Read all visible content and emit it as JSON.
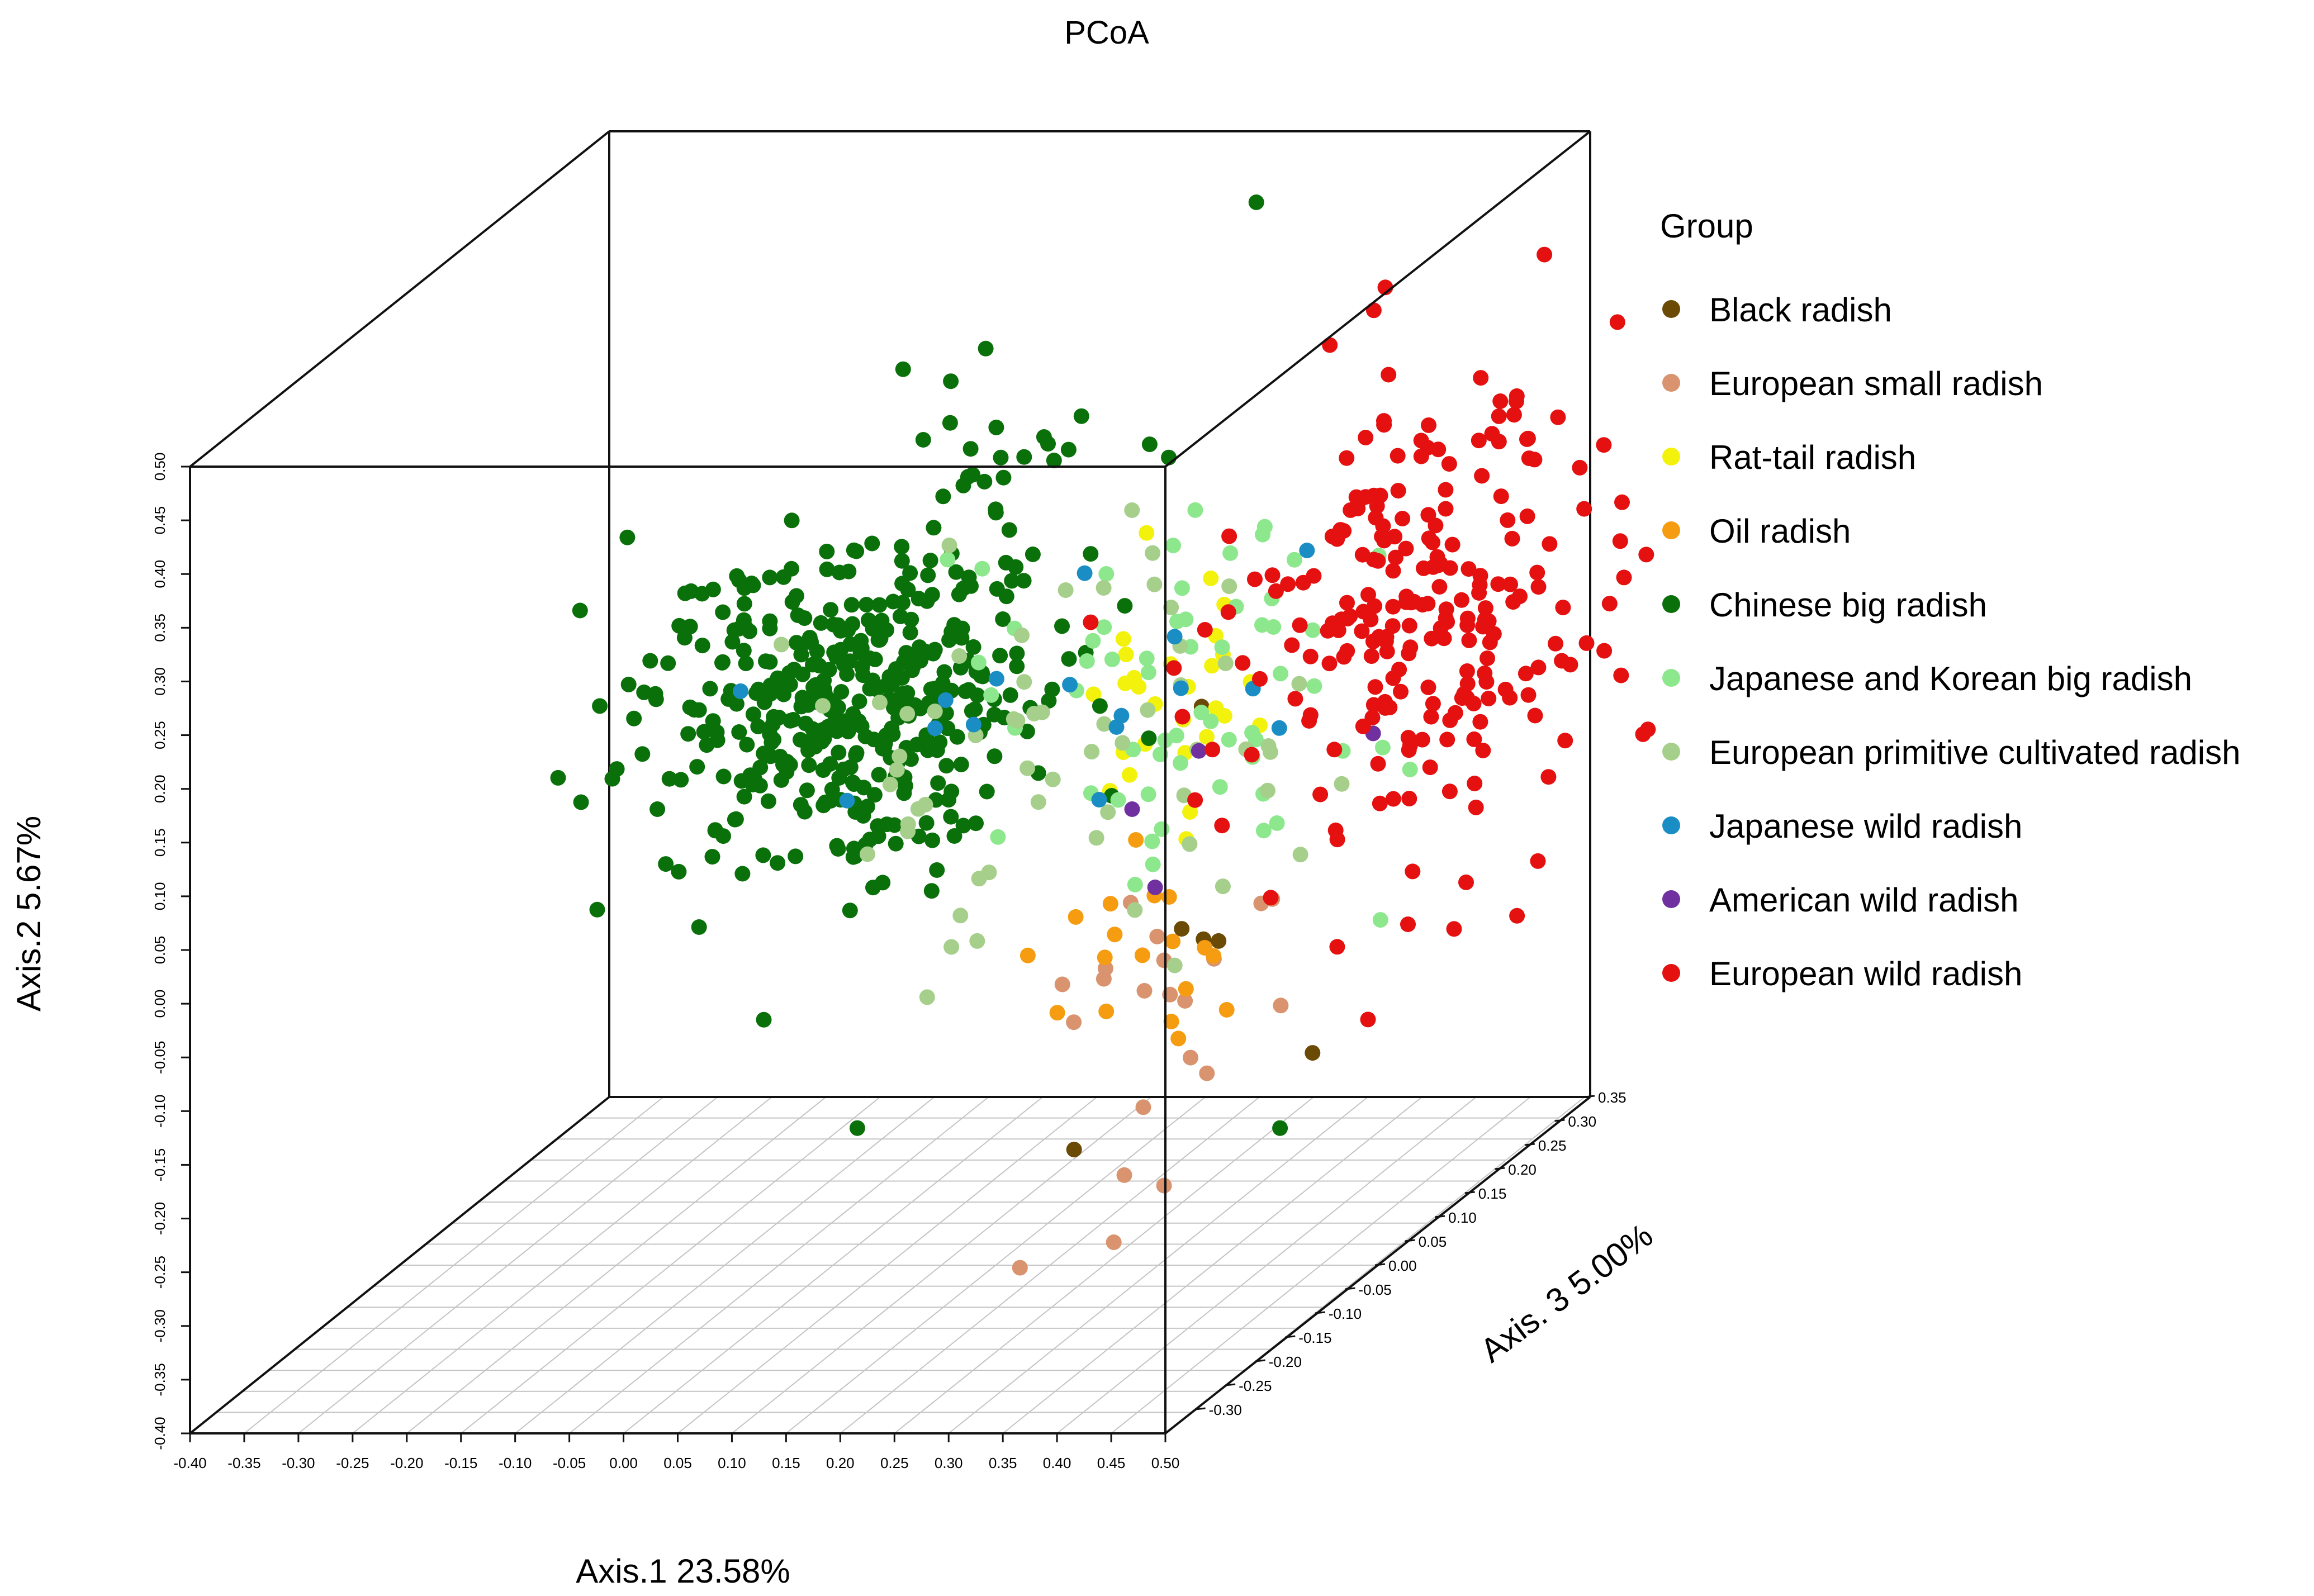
{
  "chart_data": {
    "type": "scatter",
    "projection": "3d",
    "title": "PCoA",
    "xlabel": "Axis.1  23.58%",
    "ylabel": "Axis.2  5.67%",
    "zlabel": "Axis. 3  5.00%",
    "xlim": [
      -0.4,
      0.5
    ],
    "ylim": [
      -0.4,
      0.5
    ],
    "zlim": [
      -0.35,
      0.35
    ],
    "x_ticks": [
      "-0.40",
      "-0.35",
      "-0.30",
      "-0.25",
      "-0.20",
      "-0.15",
      "-0.10",
      "-0.05",
      "0.00",
      "0.05",
      "0.10",
      "0.15",
      "0.20",
      "0.25",
      "0.30",
      "0.35",
      "0.40",
      "0.45",
      "0.50"
    ],
    "y_ticks": [
      "-0.40",
      "-0.35",
      "-0.30",
      "-0.25",
      "-0.20",
      "-0.15",
      "-0.10",
      "-0.05",
      "0.00",
      "0.05",
      "0.10",
      "0.15",
      "0.20",
      "0.25",
      "0.30",
      "0.35",
      "0.40",
      "0.45",
      "0.50"
    ],
    "z_ticks": [
      "-0.30",
      "-0.25",
      "-0.20",
      "-0.15",
      "-0.10",
      "-0.05",
      "0.00",
      "0.05",
      "0.10",
      "0.15",
      "0.20",
      "0.25",
      "0.30",
      "0.35"
    ],
    "legend": {
      "title": "Group",
      "position": "right",
      "entries": [
        {
          "name": "Black radish",
          "color": "#6b4a06"
        },
        {
          "name": "European small radish",
          "color": "#d9936f"
        },
        {
          "name": "Rat-tail radish",
          "color": "#f2f20d"
        },
        {
          "name": "Oil radish",
          "color": "#f59c10"
        },
        {
          "name": "Chinese big radish",
          "color": "#0a700a"
        },
        {
          "name": "Japanese and Korean big radish",
          "color": "#8de88d"
        },
        {
          "name": "European primitive cultivated radish",
          "color": "#a5cf8a"
        },
        {
          "name": "Japanese wild radish",
          "color": "#1a8ec4"
        },
        {
          "name": "American wild radish",
          "color": "#7030a0"
        },
        {
          "name": "European wild radish",
          "color": "#e51010"
        }
      ]
    },
    "series": [
      {
        "name": "Black radish",
        "clusters": [
          {
            "center": [
              0.36,
              -0.08,
              -0.05
            ],
            "spread": [
              0.02,
              0.02,
              0.02
            ],
            "n": 3
          },
          {
            "center": [
              0.47,
              -0.18,
              -0.05
            ],
            "spread": [
              0.01,
              0.01,
              0.01
            ],
            "n": 1
          },
          {
            "center": [
              0.25,
              -0.27,
              -0.05
            ],
            "spread": [
              0.01,
              0.01,
              0.01
            ],
            "n": 1
          },
          {
            "center": [
              0.34,
              0.12,
              0.0
            ],
            "spread": [
              0.01,
              0.01,
              0.01
            ],
            "n": 1
          }
        ]
      },
      {
        "name": "European small radish",
        "clusters": [
          {
            "center": [
              0.33,
              -0.15,
              -0.05
            ],
            "spread": [
              0.05,
              0.07,
              0.04
            ],
            "n": 18
          },
          {
            "center": [
              0.2,
              -0.38,
              -0.05
            ],
            "spread": [
              0.01,
              0.01,
              0.01
            ],
            "n": 1
          },
          {
            "center": [
              0.42,
              -0.04,
              -0.04
            ],
            "spread": [
              0.02,
              0.01,
              0.01
            ],
            "n": 2
          }
        ]
      },
      {
        "name": "Rat-tail radish",
        "clusters": [
          {
            "center": [
              0.3,
              0.12,
              0.02
            ],
            "spread": [
              0.04,
              0.06,
              0.03
            ],
            "n": 28
          }
        ]
      },
      {
        "name": "Oil radish",
        "clusters": [
          {
            "center": [
              0.3,
              -0.1,
              -0.05
            ],
            "spread": [
              0.05,
              0.06,
              0.03
            ],
            "n": 18
          }
        ]
      },
      {
        "name": "Chinese big radish",
        "clusters": [
          {
            "center": [
              0.0,
              0.12,
              0.02
            ],
            "spread": [
              0.09,
              0.07,
              0.05
            ],
            "n": 420
          },
          {
            "center": [
              0.15,
              0.33,
              0.0
            ],
            "spread": [
              0.06,
              0.05,
              0.03
            ],
            "n": 25
          },
          {
            "center": [
              0.44,
              -0.25,
              -0.05
            ],
            "spread": [
              0.01,
              0.01,
              0.01
            ],
            "n": 1
          },
          {
            "center": [
              0.05,
              -0.25,
              -0.05
            ],
            "spread": [
              0.01,
              0.01,
              0.01
            ],
            "n": 1
          },
          {
            "center": [
              0.28,
              0.5,
              0.2
            ],
            "spread": [
              0.01,
              0.01,
              0.01
            ],
            "n": 1
          }
        ]
      },
      {
        "name": "Japanese and Korean big radish",
        "clusters": [
          {
            "center": [
              0.3,
              0.12,
              0.02
            ],
            "spread": [
              0.09,
              0.1,
              0.05
            ],
            "n": 60
          }
        ]
      },
      {
        "name": "European primitive cultivated radish",
        "clusters": [
          {
            "center": [
              0.2,
              0.1,
              0.0
            ],
            "spread": [
              0.13,
              0.1,
              0.06
            ],
            "n": 60
          }
        ]
      },
      {
        "name": "Japanese wild radish",
        "clusters": [
          {
            "center": [
              0.18,
              0.12,
              0.02
            ],
            "spread": [
              0.13,
              0.06,
              0.04
            ],
            "n": 16
          }
        ]
      },
      {
        "name": "American wild radish",
        "clusters": [
          {
            "center": [
              0.3,
              0.02,
              -0.02
            ],
            "spread": [
              0.08,
              0.07,
              0.03
            ],
            "n": 4
          }
        ]
      },
      {
        "name": "European wild radish",
        "clusters": [
          {
            "center": [
              0.5,
              0.15,
              0.1
            ],
            "spread": [
              0.08,
              0.11,
              0.06
            ],
            "n": 240
          }
        ]
      }
    ]
  }
}
